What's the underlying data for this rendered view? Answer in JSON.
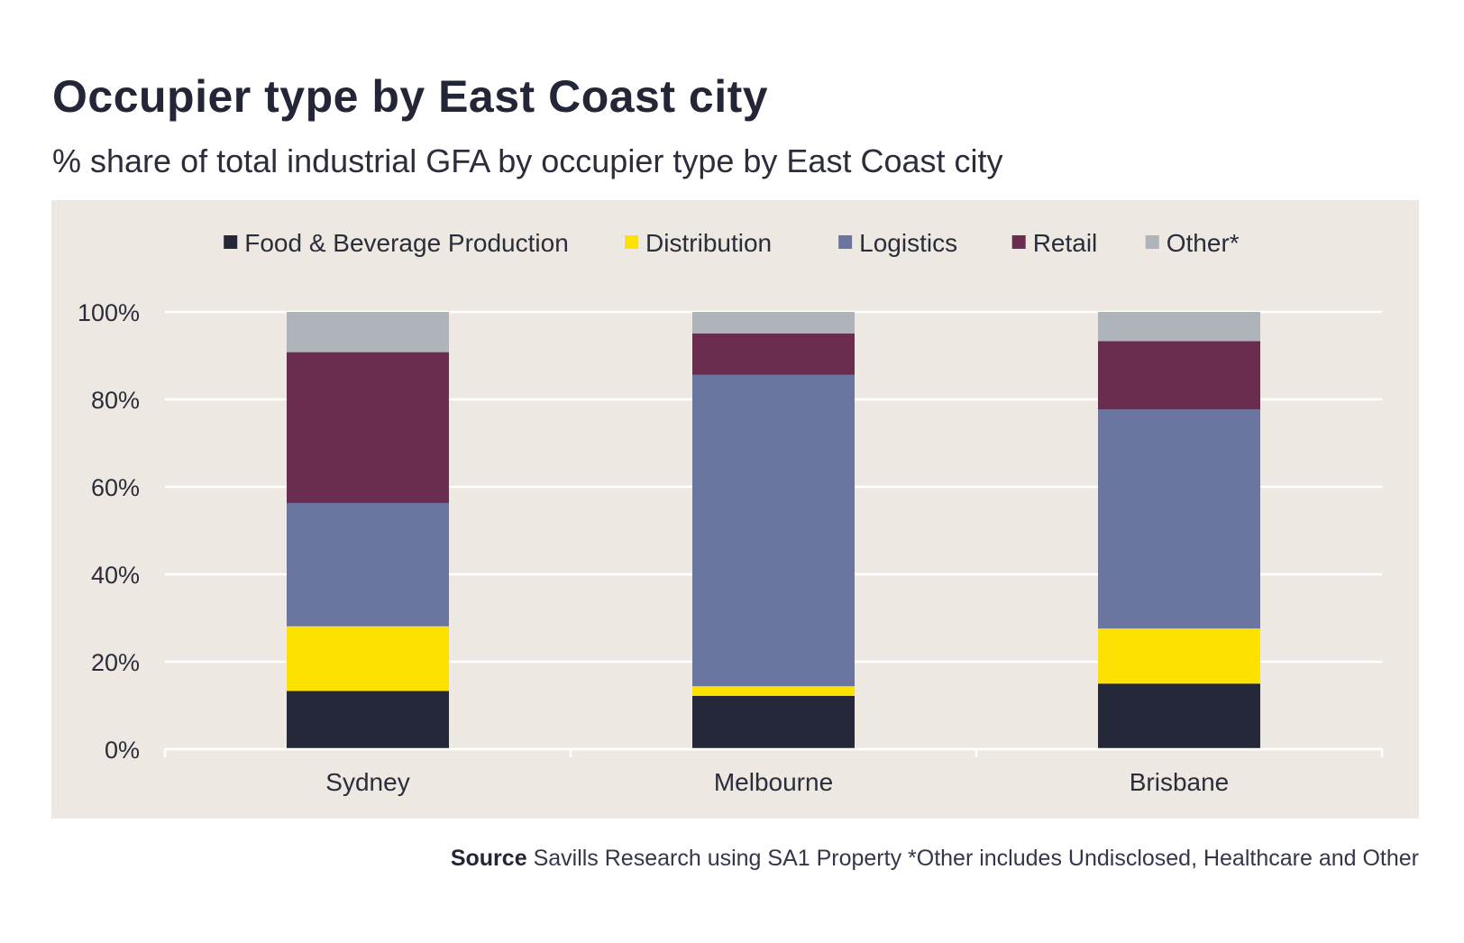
{
  "title": "Occupier type by East Coast city",
  "subtitle": "% share of total industrial GFA by occupier type by East Coast city",
  "source": {
    "label": "Source",
    "text": "Savills Research using SA1 Property *Other includes Undisclosed, Healthcare and Other"
  },
  "chart_data": {
    "type": "bar",
    "stacked": true,
    "categories": [
      "Sydney",
      "Melbourne",
      "Brisbane"
    ],
    "series": [
      {
        "name": "Food & Beverage Production",
        "color": "#252839",
        "values": [
          13.3,
          12.2,
          15.0
        ]
      },
      {
        "name": "Distribution",
        "color": "#fde100",
        "values": [
          14.8,
          2.2,
          12.6
        ]
      },
      {
        "name": "Logistics",
        "color": "#6a75a0",
        "values": [
          28.2,
          71.2,
          50.1
        ]
      },
      {
        "name": "Retail",
        "color": "#6a2d4f",
        "values": [
          34.5,
          9.5,
          15.6
        ]
      },
      {
        "name": "Other*",
        "color": "#afb3ba",
        "values": [
          9.2,
          4.9,
          6.7
        ]
      }
    ],
    "y_ticks": [
      "0%",
      "20%",
      "40%",
      "60%",
      "80%",
      "100%"
    ],
    "ylim": [
      0,
      100
    ],
    "grid": true,
    "legend_position": "top"
  }
}
